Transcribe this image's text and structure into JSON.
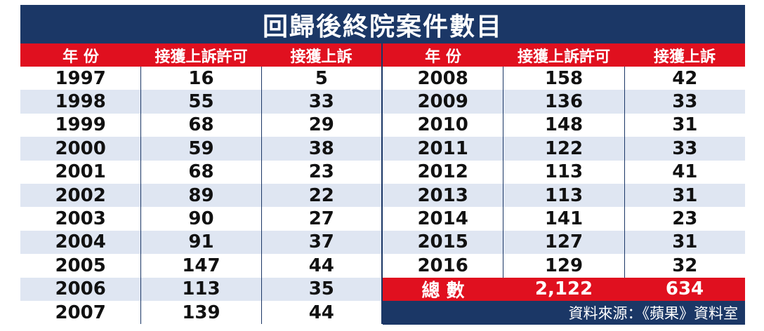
{
  "title": "回歸後終院案件數目",
  "headers": [
    "年 份",
    "接獲上訴許可",
    "接獲上訴"
  ],
  "left_rows": [
    [
      "1997",
      "16",
      "5"
    ],
    [
      "1998",
      "55",
      "33"
    ],
    [
      "1999",
      "68",
      "29"
    ],
    [
      "2000",
      "59",
      "38"
    ],
    [
      "2001",
      "68",
      "23"
    ],
    [
      "2002",
      "89",
      "22"
    ],
    [
      "2003",
      "90",
      "27"
    ],
    [
      "2004",
      "91",
      "37"
    ],
    [
      "2005",
      "147",
      "44"
    ],
    [
      "2006",
      "113",
      "35"
    ],
    [
      "2007",
      "139",
      "44"
    ]
  ],
  "right_rows": [
    [
      "2008",
      "158",
      "42"
    ],
    [
      "2009",
      "136",
      "33"
    ],
    [
      "2010",
      "148",
      "31"
    ],
    [
      "2011",
      "122",
      "33"
    ],
    [
      "2012",
      "113",
      "41"
    ],
    [
      "2013",
      "113",
      "31"
    ],
    [
      "2014",
      "141",
      "23"
    ],
    [
      "2015",
      "127",
      "31"
    ],
    [
      "2016",
      "129",
      "32"
    ]
  ],
  "total": {
    "label": "總 數",
    "permissions": "2,122",
    "appeals": "634"
  },
  "source": "資料來源：《蘋果》資料室",
  "colors": {
    "navy": "#1b3766",
    "red": "#e0101f",
    "stripe": "#dfe6f2"
  }
}
